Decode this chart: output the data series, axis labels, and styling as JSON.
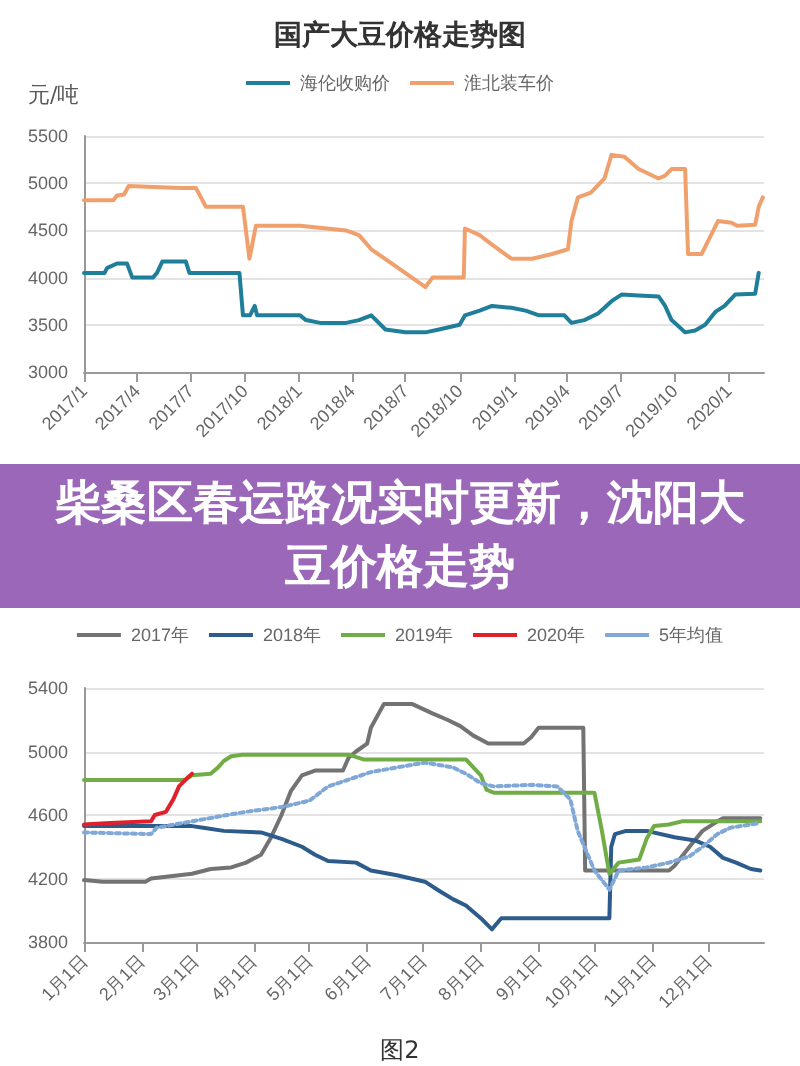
{
  "chart_data": [
    {
      "type": "line",
      "title": "国产大豆价格走势图",
      "ylabel": "元/吨",
      "legend": "top",
      "grid": "y",
      "marker": "none",
      "line_style": "solid",
      "xlim": [
        "2017-01",
        "2020-03"
      ],
      "xticks": [
        {
          "value": "2017-01",
          "label": "2017/1"
        },
        {
          "value": "2017-04",
          "label": "2017/4"
        },
        {
          "value": "2017-07",
          "label": "2017/7"
        },
        {
          "value": "2017-10",
          "label": "2017/10"
        },
        {
          "value": "2018-01",
          "label": "2018/1"
        },
        {
          "value": "2018-04",
          "label": "2018/4"
        },
        {
          "value": "2018-07",
          "label": "2018/7"
        },
        {
          "value": "2018-10",
          "label": "2018/10"
        },
        {
          "value": "2019-01",
          "label": "2019/1"
        },
        {
          "value": "2019-04",
          "label": "2019/4"
        },
        {
          "value": "2019-07",
          "label": "2019/7"
        },
        {
          "value": "2019-10",
          "label": "2019/10"
        },
        {
          "value": "2020-01",
          "label": "2020/1"
        }
      ],
      "ylim": [
        3000,
        5500
      ],
      "yticks": [
        3000,
        3500,
        4000,
        4500,
        5000,
        5500
      ],
      "series": [
        {
          "name": "海伦收购价",
          "color": "#1f7f9a",
          "x": [
            "2017-01-01",
            "2017-02-05",
            "2017-02-09",
            "2017-02-26",
            "2017-03-15",
            "2017-03-18",
            "2017-03-24",
            "2017-04-28",
            "2017-05-05",
            "2017-05-14",
            "2017-06-23",
            "2017-06-29",
            "2017-09-22",
            "2017-09-28",
            "2017-10-10",
            "2017-10-18",
            "2017-10-22",
            "2017-11-07",
            "2018-01-03",
            "2018-01-13",
            "2018-02-06",
            "2018-03-22",
            "2018-04-13",
            "2018-05-04",
            "2018-05-28",
            "2018-07-01",
            "2018-08-04",
            "2018-08-27",
            "2018-10-01",
            "2018-10-10",
            "2018-11-04",
            "2018-11-25",
            "2018-12-28",
            "2019-01-21",
            "2019-02-13",
            "2019-03-28",
            "2019-04-09",
            "2019-05-01",
            "2019-05-24",
            "2019-06-04",
            "2019-06-16",
            "2019-07-03",
            "2019-08-01",
            "2019-09-04",
            "2019-09-15",
            "2019-09-26",
            "2019-10-05",
            "2019-10-19",
            "2019-11-05",
            "2019-11-22",
            "2019-12-10",
            "2019-12-25",
            "2020-01-12",
            "2020-02-15",
            "2020-02-21"
          ],
          "values": [
            4050,
            4050,
            4100,
            4150,
            4150,
            4100,
            4000,
            4000,
            4050,
            4170,
            4170,
            4050,
            4050,
            3600,
            3600,
            3700,
            3600,
            3600,
            3600,
            3550,
            3520,
            3520,
            3550,
            3600,
            3450,
            3420,
            3420,
            3450,
            3500,
            3600,
            3650,
            3700,
            3680,
            3650,
            3600,
            3600,
            3520,
            3550,
            3620,
            3680,
            3750,
            3820,
            3810,
            3800,
            3700,
            3550,
            3500,
            3420,
            3440,
            3500,
            3640,
            3700,
            3820,
            3830,
            4050
          ]
        },
        {
          "name": "淮北装车价",
          "color": "#f0a06c",
          "x": [
            "2017-01-01",
            "2017-02-20",
            "2017-02-26",
            "2017-03-10",
            "2017-03-18",
            "2017-06-12",
            "2017-06-23",
            "2017-07-10",
            "2017-07-27",
            "2017-09-28",
            "2017-10-09",
            "2017-10-20",
            "2018-01-03",
            "2018-03-22",
            "2018-04-13",
            "2018-05-04",
            "2018-06-19",
            "2018-07-12",
            "2018-08-04",
            "2018-08-16",
            "2018-10-08",
            "2018-10-10",
            "2018-11-04",
            "2018-11-25",
            "2018-12-28",
            "2019-02-01",
            "2019-03-07",
            "2019-04-03",
            "2019-04-09",
            "2019-04-20",
            "2019-05-12",
            "2019-06-04",
            "2019-06-16",
            "2019-07-08",
            "2019-08-01",
            "2019-09-04",
            "2019-09-15",
            "2019-09-26",
            "2019-10-19",
            "2019-10-24",
            "2019-11-16",
            "2019-11-28",
            "2019-12-14",
            "2020-01-06",
            "2020-01-15",
            "2020-02-15",
            "2020-02-21",
            "2020-02-28"
          ],
          "values": [
            4820,
            4820,
            4870,
            4880,
            4970,
            4950,
            4950,
            4950,
            4750,
            4750,
            4200,
            4550,
            4550,
            4500,
            4450,
            4300,
            4100,
            4000,
            3900,
            4000,
            4000,
            4520,
            4450,
            4350,
            4200,
            4200,
            4250,
            4300,
            4600,
            4850,
            4900,
            5050,
            5300,
            5280,
            5150,
            5050,
            5080,
            5150,
            5150,
            4250,
            4250,
            4400,
            4600,
            4580,
            4550,
            4560,
            4750,
            4850
          ]
        }
      ]
    },
    {
      "type": "other",
      "title": "柴桑区春运路况实时更新，沈阳大豆价格走势"
    },
    {
      "type": "line",
      "legend": "top",
      "grid": "y",
      "marker": "none",
      "line_style": "solid",
      "annotations": [
        "图2"
      ],
      "xlim": [
        "--01-01",
        "--12-31"
      ],
      "xticks": [
        {
          "value": "--01-01",
          "label": "1月1日"
        },
        {
          "value": "--02-01",
          "label": "2月1日"
        },
        {
          "value": "--03-01",
          "label": "3月1日"
        },
        {
          "value": "--04-01",
          "label": "4月1日"
        },
        {
          "value": "--05-01",
          "label": "5月1日"
        },
        {
          "value": "--06-01",
          "label": "6月1日"
        },
        {
          "value": "--07-01",
          "label": "7月1日"
        },
        {
          "value": "--08-01",
          "label": "8月1日"
        },
        {
          "value": "--09-01",
          "label": "9月1日"
        },
        {
          "value": "--10-01",
          "label": "10月1日"
        },
        {
          "value": "--11-01",
          "label": "11月1日"
        },
        {
          "value": "--12-01",
          "label": "12月1日"
        }
      ],
      "ylim": [
        3800,
        5400
      ],
      "yticks": [
        3800,
        4200,
        4600,
        5000,
        5400
      ],
      "series": [
        {
          "name": "2017年",
          "color": "#737373",
          "x": [
            "--01-01",
            "--01-11",
            "--02-03",
            "--02-06",
            "--02-21",
            "--02-28",
            "--03-09",
            "--03-20",
            "--03-28",
            "--04-05",
            "--04-10",
            "--04-16",
            "--04-21",
            "--04-27",
            "--05-04",
            "--05-19",
            "--05-22",
            "--05-26",
            "--06-01",
            "--06-03",
            "--06-10",
            "--06-25",
            "--07-06",
            "--07-14",
            "--07-21",
            "--07-28",
            "--08-05",
            "--08-24",
            "--08-28",
            "--09-01",
            "--09-25",
            "--09-26",
            "--11-10",
            "--11-13",
            "--11-21",
            "--11-28",
            "--12-06",
            "--12-09",
            "--12-29"
          ],
          "values": [
            4190,
            4180,
            4180,
            4200,
            4220,
            4230,
            4260,
            4270,
            4300,
            4350,
            4450,
            4600,
            4750,
            4850,
            4880,
            4880,
            4960,
            5000,
            5050,
            5150,
            5300,
            5300,
            5240,
            5200,
            5160,
            5100,
            5050,
            5050,
            5090,
            5150,
            5150,
            4250,
            4250,
            4280,
            4400,
            4500,
            4560,
            4580,
            4580
          ]
        },
        {
          "name": "2018年",
          "color": "#2d5b8c",
          "x": [
            "--01-01",
            "--02-28",
            "--03-05",
            "--03-16",
            "--04-05",
            "--04-16",
            "--04-27",
            "--05-04",
            "--05-11",
            "--05-26",
            "--06-03",
            "--06-17",
            "--07-02",
            "--07-10",
            "--07-17",
            "--07-24",
            "--08-01",
            "--08-07",
            "--08-12",
            "--10-09",
            "--10-10",
            "--10-12",
            "--10-18",
            "--10-29",
            "--11-13",
            "--11-24",
            "--12-02",
            "--12-09",
            "--12-16",
            "--12-24",
            "--12-29"
          ],
          "values": [
            4530,
            4530,
            4520,
            4500,
            4490,
            4450,
            4400,
            4350,
            4310,
            4300,
            4250,
            4220,
            4180,
            4120,
            4070,
            4030,
            3950,
            3880,
            3950,
            3950,
            4400,
            4480,
            4500,
            4500,
            4460,
            4440,
            4400,
            4330,
            4300,
            4260,
            4250
          ]
        },
        {
          "name": "2019年",
          "color": "#70ad47",
          "x": [
            "--01-01",
            "--02-24",
            "--02-28",
            "--03-09",
            "--03-13",
            "--03-16",
            "--03-20",
            "--03-26",
            "--05-22",
            "--05-30",
            "--07-24",
            "--08-01",
            "--08-04",
            "--08-08",
            "--10-01",
            "--10-05",
            "--10-09",
            "--10-14",
            "--10-25",
            "--10-29",
            "--11-02",
            "--11-10",
            "--11-17",
            "--12-29"
          ],
          "values": [
            4820,
            4820,
            4850,
            4860,
            4900,
            4940,
            4970,
            4980,
            4980,
            4950,
            4950,
            4850,
            4760,
            4740,
            4740,
            4500,
            4230,
            4300,
            4320,
            4450,
            4530,
            4540,
            4560,
            4560
          ]
        },
        {
          "name": "2020年",
          "color": "#e0202a",
          "x": [
            "--01-01",
            "--01-15",
            "--02-06",
            "--02-08",
            "--02-14",
            "--02-18",
            "--02-21",
            "--02-26",
            "--02-28"
          ],
          "values": [
            4540,
            4550,
            4560,
            4600,
            4620,
            4700,
            4780,
            4840,
            4860
          ]
        },
        {
          "name": "5年均值",
          "color": "#7fa8d6",
          "line_style": "dotted",
          "x": [
            "--01-01",
            "--02-06",
            "--02-09",
            "--02-28",
            "--03-13",
            "--03-28",
            "--04-16",
            "--05-01",
            "--05-11",
            "--06-03",
            "--06-17",
            "--07-02",
            "--07-17",
            "--07-24",
            "--08-01",
            "--08-08",
            "--08-28",
            "--09-11",
            "--09-18",
            "--09-22",
            "--10-01",
            "--10-09",
            "--10-14",
            "--10-29",
            "--11-10",
            "--11-21",
            "--11-28",
            "--12-06",
            "--12-13",
            "--12-29"
          ],
          "values": [
            4490,
            4480,
            4520,
            4560,
            4590,
            4620,
            4650,
            4690,
            4780,
            4870,
            4900,
            4930,
            4900,
            4860,
            4800,
            4780,
            4790,
            4780,
            4700,
            4500,
            4250,
            4130,
            4250,
            4270,
            4300,
            4340,
            4400,
            4480,
            4520,
            4550
          ]
        }
      ]
    }
  ]
}
